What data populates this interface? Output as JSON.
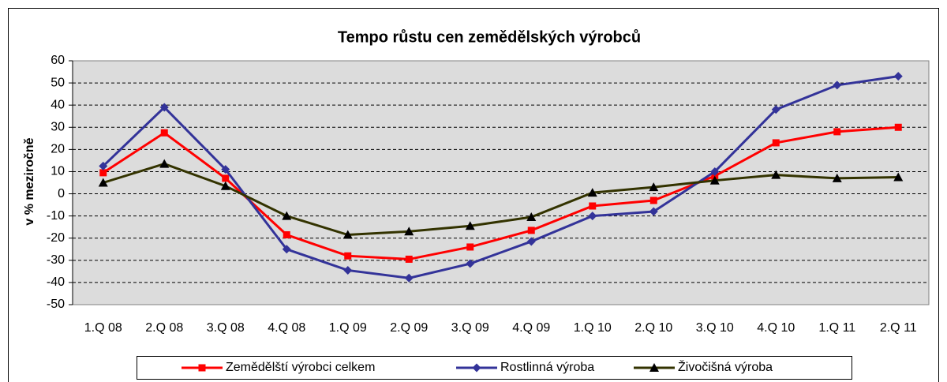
{
  "chart_data": {
    "type": "line",
    "title": "Tempo růstu cen zemědělských výrobců",
    "y_label": "v % meziročně",
    "categories": [
      "1.Q 08",
      "2.Q 08",
      "3.Q 08",
      "4.Q 08",
      "1.Q 09",
      "2.Q 09",
      "3.Q 09",
      "4.Q 09",
      "1.Q 10",
      "2.Q 10",
      "3.Q 10",
      "4.Q 10",
      "1.Q 11",
      "2.Q 11"
    ],
    "series": [
      {
        "name": "Zemědělští výrobci celkem",
        "color": "#ff0000",
        "marker": "square",
        "values": [
          9.5,
          27.5,
          7,
          -18.5,
          -28,
          -29.5,
          -24,
          -16.5,
          -5.5,
          -3,
          8,
          23,
          28,
          30
        ]
      },
      {
        "name": "Rostlinná výroba",
        "color": "#333399",
        "marker": "diamond",
        "values": [
          12.5,
          39,
          11,
          -25,
          -34.5,
          -38,
          -31.5,
          -21.5,
          -10,
          -8,
          10,
          38,
          49,
          53
        ]
      },
      {
        "name": "Živočišná výroba",
        "color": "#333300",
        "marker": "triangle",
        "values": [
          5,
          13.5,
          3.5,
          -10,
          -18.5,
          -17,
          -14.5,
          -10.5,
          0.5,
          3,
          6,
          8.5,
          7,
          7.5
        ]
      }
    ],
    "ylim": [
      -50,
      60
    ],
    "yticks": [
      -50,
      -40,
      -30,
      -20,
      -10,
      0,
      10,
      20,
      30,
      40,
      50,
      60
    ],
    "grid": true,
    "legend": "bottom"
  }
}
